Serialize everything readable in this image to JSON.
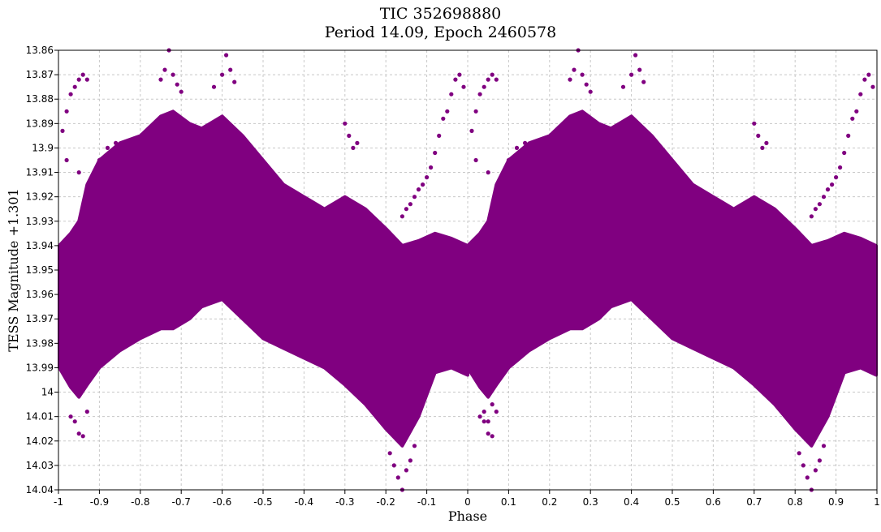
{
  "chart_data": {
    "type": "scatter",
    "title": "TIC 352698880",
    "subtitle": "Period 14.09, Epoch 2460578",
    "xlabel": "Phase",
    "ylabel": "TESS Magnitude +1.301",
    "xlim": [
      -1,
      1
    ],
    "ylim": [
      13.86,
      14.04
    ],
    "y_inverted": true,
    "grid": true,
    "marker_color": "#800080",
    "x_ticks": [
      "-1",
      "-0.9",
      "-0.8",
      "-0.7",
      "-0.6",
      "-0.5",
      "-0.4",
      "-0.3",
      "-0.2",
      "-0.1",
      "0",
      "0.1",
      "0.2",
      "0.3",
      "0.4",
      "0.5",
      "0.6",
      "0.7",
      "0.8",
      "0.9",
      "1"
    ],
    "y_ticks": [
      "13.86",
      "13.87",
      "13.88",
      "13.89",
      "13.9",
      "13.91",
      "13.92",
      "13.93",
      "13.94",
      "13.95",
      "13.96",
      "13.97",
      "13.98",
      "13.99",
      "14",
      "14.01",
      "14.02",
      "14.03",
      "14.04"
    ],
    "envelope": {
      "phase": [
        -1.0,
        -0.97,
        -0.95,
        -0.93,
        -0.9,
        -0.85,
        -0.8,
        -0.75,
        -0.72,
        -0.68,
        -0.65,
        -0.6,
        -0.55,
        -0.5,
        -0.45,
        -0.4,
        -0.35,
        -0.3,
        -0.25,
        -0.2,
        -0.16,
        -0.12,
        -0.08,
        -0.04,
        0.0
      ],
      "faint": [
        13.99,
        13.998,
        14.002,
        13.997,
        13.99,
        13.983,
        13.978,
        13.974,
        13.974,
        13.97,
        13.965,
        13.962,
        13.97,
        13.978,
        13.982,
        13.986,
        13.99,
        13.997,
        14.005,
        14.015,
        14.022,
        14.01,
        13.992,
        13.99,
        13.993
      ],
      "bright": [
        13.94,
        13.935,
        13.93,
        13.915,
        13.905,
        13.898,
        13.895,
        13.887,
        13.885,
        13.89,
        13.892,
        13.887,
        13.895,
        13.905,
        13.915,
        13.92,
        13.925,
        13.92,
        13.925,
        13.933,
        13.94,
        13.938,
        13.935,
        13.937,
        13.94
      ]
    },
    "series": [
      {
        "x": [
          -0.98,
          -0.97,
          -0.96,
          -0.95,
          -0.94,
          -0.93,
          -0.99,
          -0.98,
          -0.95,
          -0.92,
          -0.9,
          -0.88,
          -0.86,
          -0.75,
          -0.74,
          -0.73,
          -0.72,
          -0.71,
          -0.7,
          -0.62,
          -0.6,
          -0.59,
          -0.58,
          -0.57,
          -0.3,
          -0.29,
          -0.28,
          -0.27,
          -0.16,
          -0.15,
          -0.14,
          -0.13,
          -0.12,
          -0.11,
          -0.1,
          -0.09,
          -0.08,
          -0.07,
          -0.06,
          -0.05,
          -0.04,
          -0.03,
          -0.02,
          -0.01,
          -0.19,
          -0.18,
          -0.17,
          -0.16,
          -0.15,
          -0.14,
          -0.13,
          -0.96,
          -0.95,
          -0.94,
          -0.97,
          -0.93,
          0.04,
          0.05,
          0.06
        ],
        "y": [
          13.885,
          13.878,
          13.875,
          13.872,
          13.87,
          13.872,
          13.893,
          13.905,
          13.91,
          13.918,
          13.905,
          13.9,
          13.898,
          13.872,
          13.868,
          13.86,
          13.87,
          13.874,
          13.877,
          13.875,
          13.87,
          13.862,
          13.868,
          13.873,
          13.89,
          13.895,
          13.9,
          13.898,
          13.928,
          13.925,
          13.923,
          13.92,
          13.917,
          13.915,
          13.912,
          13.908,
          13.902,
          13.895,
          13.888,
          13.885,
          13.878,
          13.872,
          13.87,
          13.875,
          14.025,
          14.03,
          14.035,
          14.04,
          14.032,
          14.028,
          14.022,
          14.012,
          14.017,
          14.018,
          14.01,
          14.008,
          14.008,
          14.012,
          14.005
        ]
      }
    ]
  }
}
